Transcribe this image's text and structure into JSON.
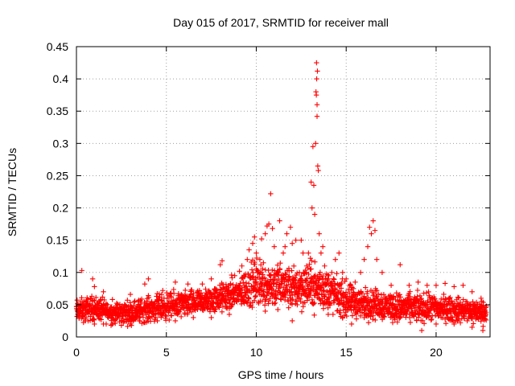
{
  "chart_data": {
    "type": "scatter",
    "title": "Day 015 of 2017, SRMTID for receiver mall",
    "xlabel": "GPS time / hours",
    "ylabel": "SRMTID / TECUs",
    "xlim": [
      0,
      23
    ],
    "ylim": [
      0,
      0.45
    ],
    "xticks": [
      "0",
      "5",
      "10",
      "15",
      "20"
    ],
    "yticks": [
      "0",
      "0.05",
      "0.1",
      "0.15",
      "0.2",
      "0.25",
      "0.3",
      "0.35",
      "0.4",
      "0.45"
    ],
    "marker": "+",
    "color": "#ff0000",
    "grid": true,
    "legend": "none",
    "series": [
      {
        "name": "SRMTID",
        "points": [
          [
            0.3,
            0.103
          ],
          [
            0.9,
            0.09
          ],
          [
            1.0,
            0.078
          ],
          [
            1.5,
            0.07
          ],
          [
            2.0,
            0.058
          ],
          [
            3.0,
            0.066
          ],
          [
            3.8,
            0.082
          ],
          [
            4.0,
            0.09
          ],
          [
            4.8,
            0.072
          ],
          [
            5.5,
            0.085
          ],
          [
            6.2,
            0.082
          ],
          [
            7.0,
            0.082
          ],
          [
            7.5,
            0.09
          ],
          [
            8.0,
            0.112
          ],
          [
            8.1,
            0.118
          ],
          [
            8.8,
            0.095
          ],
          [
            9.2,
            0.11
          ],
          [
            9.5,
            0.12
          ],
          [
            9.6,
            0.135
          ],
          [
            9.8,
            0.145
          ],
          [
            9.9,
            0.155
          ],
          [
            10.0,
            0.13
          ],
          [
            10.2,
            0.12
          ],
          [
            10.3,
            0.152
          ],
          [
            10.5,
            0.16
          ],
          [
            10.6,
            0.172
          ],
          [
            10.7,
            0.175
          ],
          [
            10.8,
            0.222
          ],
          [
            10.9,
            0.168
          ],
          [
            11.0,
            0.14
          ],
          [
            11.2,
            0.1
          ],
          [
            11.3,
            0.18
          ],
          [
            11.5,
            0.13
          ],
          [
            11.6,
            0.14
          ],
          [
            11.7,
            0.16
          ],
          [
            11.9,
            0.17
          ],
          [
            12.0,
            0.145
          ],
          [
            12.2,
            0.15
          ],
          [
            12.4,
            0.1
          ],
          [
            12.5,
            0.15
          ],
          [
            12.6,
            0.13
          ],
          [
            12.8,
            0.11
          ],
          [
            12.9,
            0.13
          ],
          [
            13.0,
            0.105
          ],
          [
            13.05,
            0.24
          ],
          [
            13.1,
            0.2
          ],
          [
            13.15,
            0.295
          ],
          [
            13.2,
            0.235
          ],
          [
            13.25,
            0.19
          ],
          [
            13.3,
            0.3
          ],
          [
            13.32,
            0.38
          ],
          [
            13.34,
            0.375
          ],
          [
            13.35,
            0.425
          ],
          [
            13.36,
            0.4
          ],
          [
            13.38,
            0.36
          ],
          [
            13.38,
            0.342
          ],
          [
            13.4,
            0.412
          ],
          [
            13.42,
            0.265
          ],
          [
            13.45,
            0.258
          ],
          [
            13.5,
            0.16
          ],
          [
            13.6,
            0.13
          ],
          [
            13.7,
            0.14
          ],
          [
            13.8,
            0.11
          ],
          [
            14.0,
            0.09
          ],
          [
            14.2,
            0.1
          ],
          [
            14.4,
            0.12
          ],
          [
            14.6,
            0.13
          ],
          [
            14.8,
            0.1
          ],
          [
            15.0,
            0.09
          ],
          [
            15.5,
            0.085
          ],
          [
            15.8,
            0.1
          ],
          [
            16.0,
            0.12
          ],
          [
            16.2,
            0.14
          ],
          [
            16.3,
            0.17
          ],
          [
            16.4,
            0.16
          ],
          [
            16.5,
            0.18
          ],
          [
            16.6,
            0.165
          ],
          [
            16.7,
            0.12
          ],
          [
            17.0,
            0.1
          ],
          [
            17.5,
            0.08
          ],
          [
            18.0,
            0.112
          ],
          [
            18.5,
            0.08
          ],
          [
            19.0,
            0.085
          ],
          [
            19.5,
            0.08
          ],
          [
            20.0,
            0.08
          ],
          [
            20.5,
            0.083
          ],
          [
            21.0,
            0.078
          ],
          [
            21.5,
            0.08
          ],
          [
            22.0,
            0.07
          ],
          [
            22.5,
            0.06
          ],
          [
            0.5,
            0.025
          ],
          [
            1.0,
            0.02
          ],
          [
            1.5,
            0.02
          ],
          [
            2.0,
            0.02
          ],
          [
            2.5,
            0.018
          ],
          [
            3.0,
            0.02
          ],
          [
            3.5,
            0.025
          ],
          [
            4.5,
            0.025
          ],
          [
            5.5,
            0.025
          ],
          [
            6.5,
            0.03
          ],
          [
            7.5,
            0.03
          ],
          [
            8.5,
            0.035
          ],
          [
            10.5,
            0.04
          ],
          [
            12.0,
            0.025
          ],
          [
            14.0,
            0.035
          ],
          [
            15.3,
            0.02
          ],
          [
            16.0,
            0.03
          ],
          [
            17.0,
            0.03
          ],
          [
            18.0,
            0.03
          ],
          [
            19.2,
            0.01
          ],
          [
            20.0,
            0.02
          ],
          [
            21.0,
            0.02
          ],
          [
            22.0,
            0.015
          ],
          [
            22.6,
            0.01
          ]
        ],
        "baseline": {
          "description_free_envelope": [
            [
              0,
              0.04,
              0.012
            ],
            [
              1,
              0.045,
              0.013
            ],
            [
              2,
              0.037,
              0.011
            ],
            [
              3,
              0.038,
              0.012
            ],
            [
              4,
              0.043,
              0.013
            ],
            [
              5,
              0.047,
              0.014
            ],
            [
              6,
              0.05,
              0.014
            ],
            [
              7,
              0.054,
              0.013
            ],
            [
              8,
              0.06,
              0.015
            ],
            [
              9,
              0.068,
              0.018
            ],
            [
              10,
              0.085,
              0.025
            ],
            [
              11,
              0.08,
              0.025
            ],
            [
              12,
              0.075,
              0.022
            ],
            [
              13,
              0.08,
              0.025
            ],
            [
              14,
              0.072,
              0.022
            ],
            [
              15,
              0.055,
              0.018
            ],
            [
              16,
              0.052,
              0.016
            ],
            [
              17,
              0.05,
              0.016
            ],
            [
              18,
              0.045,
              0.015
            ],
            [
              19,
              0.045,
              0.015
            ],
            [
              20,
              0.045,
              0.014
            ],
            [
              21,
              0.042,
              0.013
            ],
            [
              22,
              0.04,
              0.013
            ],
            [
              22.7,
              0.038,
              0.012
            ]
          ],
          "x_start": 0.0,
          "x_end": 22.8,
          "count": 2300
        }
      }
    ]
  }
}
